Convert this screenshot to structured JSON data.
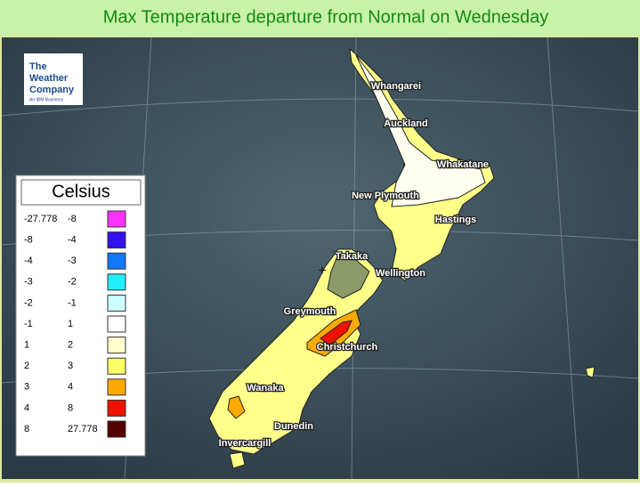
{
  "header": {
    "title": "Max Temperature departure from Normal on Wednesday"
  },
  "logo": {
    "lines": [
      "The",
      "Weather",
      "Company"
    ],
    "tagline": "An IBM Business"
  },
  "legend": {
    "title": "Celsius",
    "rows": [
      {
        "from": "-27.778",
        "to": "-8",
        "color": "#ff33ff"
      },
      {
        "from": "-8",
        "to": "-4",
        "color": "#3311ee"
      },
      {
        "from": "-4",
        "to": "-3",
        "color": "#1177ff"
      },
      {
        "from": "-3",
        "to": "-2",
        "color": "#22eeff"
      },
      {
        "from": "-2",
        "to": "-1",
        "color": "#ccffff"
      },
      {
        "from": "-1",
        "to": "1",
        "color": "#ffffff"
      },
      {
        "from": "1",
        "to": "2",
        "color": "#ffffcc"
      },
      {
        "from": "2",
        "to": "3",
        "color": "#ffff66"
      },
      {
        "from": "3",
        "to": "4",
        "color": "#ffaa00"
      },
      {
        "from": "4",
        "to": "8",
        "color": "#ee1100"
      },
      {
        "from": "8",
        "to": "27.778",
        "color": "#550000"
      }
    ]
  },
  "cities": [
    {
      "label": "Whangarei"
    },
    {
      "label": "Auckland"
    },
    {
      "label": "Whakatane"
    },
    {
      "label": "New Plymouth"
    },
    {
      "label": "Hastings"
    },
    {
      "label": "Takaka"
    },
    {
      "label": "Wellington"
    },
    {
      "label": "Greymouth"
    },
    {
      "label": "Christchurch"
    },
    {
      "label": "Wanaka"
    },
    {
      "label": "Dunedin"
    },
    {
      "label": "Invercargill"
    }
  ]
}
